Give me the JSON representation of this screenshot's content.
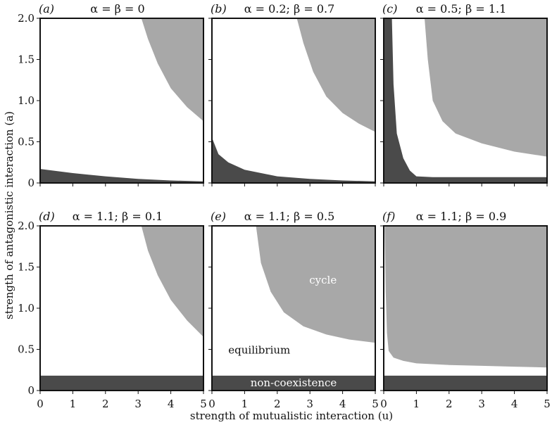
{
  "figure": {
    "ylabel": "strength of antagonistic interaction (a)",
    "xlabel": "strength of mutualistic interaction (u)",
    "colors": {
      "cycle": "#a8a8a8",
      "non_coexistence": "#4a4a4a",
      "equilibrium": "#ffffff",
      "frame": "#111111"
    }
  },
  "chart_data": [
    {
      "panel": "(a)",
      "title": "α = β = 0",
      "type": "area",
      "xlim": [
        0,
        5
      ],
      "ylim": [
        0,
        2
      ],
      "x_ticks": [
        "0",
        "1",
        "2",
        "3",
        "4",
        "5"
      ],
      "y_ticks": [
        "0",
        "0.5",
        "1.0",
        "1.5",
        "2.0"
      ],
      "regions": [
        {
          "name": "cycle",
          "boundary": {
            "x": [
              3.1,
              3.3,
              3.6,
              4.0,
              4.5,
              5.0
            ],
            "y": [
              2.0,
              1.75,
              1.45,
              1.15,
              0.92,
              0.75
            ]
          },
          "fill": "above"
        },
        {
          "name": "non-coexistence",
          "boundary": {
            "x": [
              0,
              1,
              2,
              3,
              4,
              5
            ],
            "y": [
              0.17,
              0.12,
              0.08,
              0.05,
              0.03,
              0.02
            ]
          },
          "fill": "below"
        }
      ]
    },
    {
      "panel": "(b)",
      "title": "α = 0.2; β = 0.7",
      "type": "area",
      "xlim": [
        0,
        5
      ],
      "ylim": [
        0,
        2
      ],
      "x_ticks": [
        "0",
        "1",
        "2",
        "3",
        "4",
        "5"
      ],
      "y_ticks": [
        "0",
        "0.5",
        "1.0",
        "1.5",
        "2.0"
      ],
      "regions": [
        {
          "name": "cycle",
          "boundary": {
            "x": [
              2.6,
              2.8,
              3.1,
              3.5,
              4.0,
              4.5,
              5.0
            ],
            "y": [
              2.0,
              1.7,
              1.35,
              1.05,
              0.85,
              0.72,
              0.62
            ]
          },
          "fill": "above"
        },
        {
          "name": "non-coexistence",
          "boundary": {
            "x": [
              0,
              0.2,
              0.5,
              1,
              2,
              3,
              4,
              5
            ],
            "y": [
              0.55,
              0.35,
              0.25,
              0.16,
              0.08,
              0.05,
              0.03,
              0.02
            ]
          },
          "fill": "below"
        }
      ]
    },
    {
      "panel": "(c)",
      "title": "α = 0.5; β = 1.1",
      "type": "area",
      "xlim": [
        0,
        5
      ],
      "ylim": [
        0,
        2
      ],
      "x_ticks": [
        "0",
        "1",
        "2",
        "3",
        "4",
        "5"
      ],
      "y_ticks": [
        "0",
        "0.5",
        "1.0",
        "1.5",
        "2.0"
      ],
      "regions": [
        {
          "name": "cycle",
          "boundary": {
            "x": [
              1.25,
              1.35,
              1.5,
              1.8,
              2.2,
              3.0,
              4.0,
              5.0
            ],
            "y": [
              2.0,
              1.5,
              1.0,
              0.75,
              0.6,
              0.48,
              0.38,
              0.32
            ]
          },
          "fill": "above"
        },
        {
          "name": "non-coexistence",
          "boundary": {
            "x": [
              0,
              0.25,
              0.3,
              0.4,
              0.6,
              0.8,
              1.0,
              1.5,
              5.0
            ],
            "y": [
              2.0,
              2.0,
              1.2,
              0.6,
              0.3,
              0.15,
              0.08,
              0.07,
              0.07
            ]
          },
          "fill": "below"
        }
      ]
    },
    {
      "panel": "(d)",
      "title": "α = 1.1; β = 0.1",
      "type": "area",
      "xlim": [
        0,
        5
      ],
      "ylim": [
        0,
        2
      ],
      "x_ticks": [
        "0",
        "1",
        "2",
        "3",
        "4",
        "5"
      ],
      "y_ticks": [
        "0",
        "0.5",
        "1.0",
        "1.5",
        "2.0"
      ],
      "regions": [
        {
          "name": "cycle",
          "boundary": {
            "x": [
              3.1,
              3.3,
              3.6,
              4.0,
              4.5,
              5.0
            ],
            "y": [
              2.0,
              1.7,
              1.4,
              1.1,
              0.85,
              0.65
            ]
          },
          "fill": "above"
        },
        {
          "name": "non-coexistence",
          "boundary": {
            "x": [
              0,
              5
            ],
            "y": [
              0.18,
              0.18
            ]
          },
          "fill": "below"
        }
      ]
    },
    {
      "panel": "(e)",
      "title": "α = 1.1; β = 0.5",
      "type": "area",
      "xlim": [
        0,
        5
      ],
      "ylim": [
        0,
        2
      ],
      "x_ticks": [
        "0",
        "1",
        "2",
        "3",
        "4",
        "5"
      ],
      "y_ticks": [
        "0",
        "0.5",
        "1.0",
        "1.5",
        "2.0"
      ],
      "regions": [
        {
          "name": "cycle",
          "boundary": {
            "x": [
              1.35,
              1.5,
              1.8,
              2.2,
              2.8,
              3.5,
              4.2,
              5.0
            ],
            "y": [
              2.0,
              1.55,
              1.2,
              0.95,
              0.78,
              0.68,
              0.62,
              0.58
            ]
          },
          "fill": "above"
        },
        {
          "name": "non-coexistence",
          "boundary": {
            "x": [
              0,
              5
            ],
            "y": [
              0.18,
              0.18
            ]
          },
          "fill": "below"
        }
      ],
      "annotations": [
        "cycle",
        "equilibrium",
        "non-coexistence"
      ]
    },
    {
      "panel": "(f)",
      "title": "α = 1.1; β = 0.9",
      "type": "area",
      "xlim": [
        0,
        5
      ],
      "ylim": [
        0,
        2
      ],
      "x_ticks": [
        "0",
        "1",
        "2",
        "3",
        "4",
        "5"
      ],
      "y_ticks": [
        "0",
        "0.5",
        "1.0",
        "1.5",
        "2.0"
      ],
      "regions": [
        {
          "name": "cycle",
          "boundary": {
            "x": [
              0.03,
              0.06,
              0.1,
              0.15,
              0.3,
              0.6,
              1.0,
              2.0,
              3.0,
              4.0,
              5.0
            ],
            "y": [
              1.95,
              1.2,
              0.7,
              0.48,
              0.4,
              0.36,
              0.33,
              0.31,
              0.3,
              0.29,
              0.28
            ]
          },
          "fill": "above"
        },
        {
          "name": "non-coexistence",
          "boundary": {
            "x": [
              0,
              5
            ],
            "y": [
              0.18,
              0.18
            ]
          },
          "fill": "below"
        }
      ]
    }
  ],
  "annotations": {
    "cycle": "cycle",
    "equilibrium": "equilibrium",
    "non_coexistence": "non-coexistence"
  }
}
